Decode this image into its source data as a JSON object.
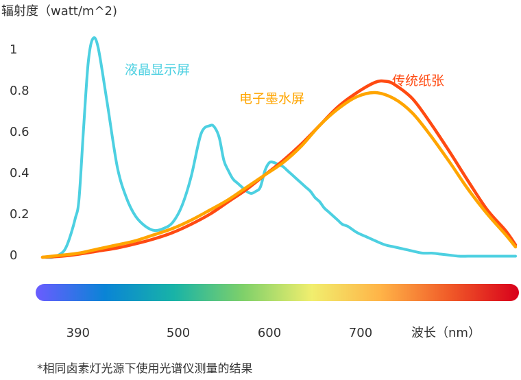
{
  "chart_data": {
    "type": "line",
    "title": "",
    "ylabel": "辐射度（watt/m^2)",
    "xlabel": "波长（nm）",
    "y_ticks": [
      "0",
      "0.2",
      "0.4",
      "0.6",
      "0.8",
      "1"
    ],
    "x_ticks": [
      "390",
      "500",
      "600",
      "700"
    ],
    "ylim": [
      0,
      1.1
    ],
    "xlim": [
      351,
      870
    ],
    "grid": false,
    "colors": {
      "lcd": "#4DD0E1",
      "eink": "#FFA500",
      "paper": "#FF4A12"
    },
    "spectrum_colors": [
      "#6A5CFF",
      "#0A84D6",
      "#18B3A7",
      "#7ED06A",
      "#F1EE6E",
      "#FFB347",
      "#F05A28",
      "#D8001B"
    ],
    "series": [
      {
        "name": "液晶显示屏",
        "key": "lcd",
        "x": [
          351,
          362,
          372,
          377,
          382,
          387,
          391,
          396,
          401,
          406,
          412,
          422,
          433,
          443,
          453,
          464,
          474,
          484,
          494,
          504,
          514,
          525,
          535,
          540,
          545,
          550,
          555,
          560,
          565,
          570,
          575,
          580,
          585,
          590,
          595,
          600,
          605,
          610,
          615,
          620,
          625,
          630,
          635,
          640,
          645,
          650,
          655,
          660,
          665,
          670,
          675,
          680,
          686,
          696,
          706,
          716,
          727,
          737,
          747,
          757,
          768,
          778,
          788,
          798,
          808,
          818,
          829,
          839,
          849,
          859,
          870
        ],
        "y": [
          -0.01,
          -0.01,
          0.01,
          0.04,
          0.1,
          0.18,
          0.27,
          0.61,
          0.93,
          1.05,
          1.01,
          0.74,
          0.43,
          0.28,
          0.19,
          0.14,
          0.12,
          0.13,
          0.16,
          0.24,
          0.38,
          0.59,
          0.63,
          0.62,
          0.57,
          0.46,
          0.41,
          0.37,
          0.35,
          0.33,
          0.31,
          0.3,
          0.31,
          0.33,
          0.41,
          0.45,
          0.45,
          0.44,
          0.43,
          0.41,
          0.39,
          0.37,
          0.35,
          0.33,
          0.31,
          0.28,
          0.26,
          0.23,
          0.21,
          0.19,
          0.17,
          0.15,
          0.14,
          0.11,
          0.09,
          0.07,
          0.05,
          0.04,
          0.03,
          0.02,
          0.01,
          0.01,
          0.005,
          0.0,
          -0.005,
          -0.005,
          -0.005,
          -0.005,
          -0.005,
          -0.005,
          -0.005
        ]
      },
      {
        "name": "电子墨水屏",
        "key": "eink",
        "x": [
          351,
          372,
          391,
          412,
          433,
          453,
          474,
          494,
          514,
          535,
          555,
          575,
          595,
          615,
          635,
          655,
          675,
          696,
          716,
          737,
          757,
          777,
          798,
          818,
          839,
          859,
          870
        ],
        "y": [
          -0.01,
          0.0,
          0.01,
          0.03,
          0.05,
          0.07,
          0.1,
          0.13,
          0.17,
          0.22,
          0.27,
          0.33,
          0.39,
          0.45,
          0.53,
          0.63,
          0.71,
          0.77,
          0.79,
          0.76,
          0.69,
          0.58,
          0.45,
          0.32,
          0.2,
          0.1,
          0.04
        ]
      },
      {
        "name": "传统纸张",
        "key": "paper",
        "x": [
          351,
          372,
          391,
          412,
          433,
          453,
          474,
          494,
          514,
          535,
          555,
          575,
          595,
          615,
          635,
          655,
          675,
          696,
          716,
          727,
          737,
          757,
          777,
          798,
          818,
          839,
          859,
          870
        ],
        "y": [
          -0.01,
          -0.005,
          0.005,
          0.02,
          0.035,
          0.055,
          0.08,
          0.11,
          0.15,
          0.2,
          0.26,
          0.32,
          0.39,
          0.46,
          0.54,
          0.63,
          0.72,
          0.79,
          0.84,
          0.845,
          0.83,
          0.76,
          0.64,
          0.5,
          0.36,
          0.22,
          0.12,
          0.05
        ]
      }
    ],
    "footnote": "*相同卤素灯光源下使用光谱仪测量的结果"
  }
}
